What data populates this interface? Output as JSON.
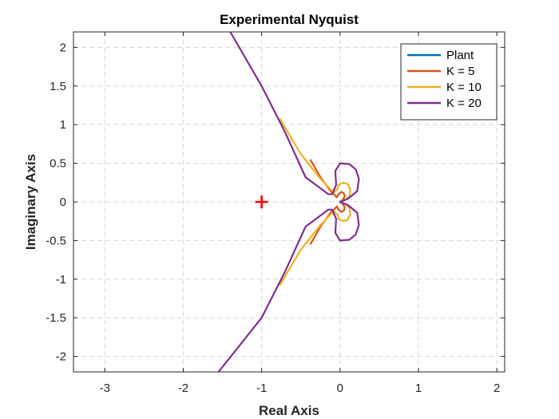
{
  "chart_data": {
    "type": "line",
    "title": "Experimental Nyquist",
    "xlabel": "Real Axis",
    "ylabel": "Imaginary Axis",
    "xlim": [
      -3.4,
      2.1
    ],
    "ylim": [
      -2.2,
      2.2
    ],
    "grid": true,
    "legend_position": "top-right",
    "x_ticks": [
      -3,
      -2,
      -1,
      0,
      1,
      2
    ],
    "y_ticks": [
      -2,
      -1.5,
      -1,
      -0.5,
      0,
      0.5,
      1,
      1.5,
      2
    ],
    "x_tick_labels": [
      "-3",
      "-2",
      "-1",
      "0",
      "1",
      "2"
    ],
    "y_tick_labels": [
      "-2",
      "-1.5",
      "-1",
      "-0.5",
      "0",
      "0.5",
      "1",
      "1.5",
      "2"
    ],
    "critical_point": {
      "x": -1,
      "y": 0,
      "marker": "+",
      "color": "#ff0000"
    },
    "series": [
      {
        "name": "Plant",
        "color": "#0072bd",
        "points": [
          [
            0.0,
            0.0
          ],
          [
            0.005,
            0.004
          ],
          [
            0.008,
            0.0
          ],
          [
            0.005,
            -0.004
          ],
          [
            0.0,
            0.0
          ]
        ]
      },
      {
        "name": "K = 5",
        "color": "#d95319",
        "points": [
          [
            -0.38,
            0.55
          ],
          [
            -0.25,
            0.32
          ],
          [
            -0.12,
            0.14
          ],
          [
            -0.04,
            0.06
          ],
          [
            -0.02,
            0.1
          ],
          [
            0.02,
            0.13
          ],
          [
            0.05,
            0.11
          ],
          [
            0.06,
            0.07
          ],
          [
            0.03,
            0.02
          ],
          [
            0.0,
            0.0
          ],
          [
            0.03,
            -0.02
          ],
          [
            0.06,
            -0.07
          ],
          [
            0.05,
            -0.11
          ],
          [
            0.02,
            -0.13
          ],
          [
            -0.02,
            -0.1
          ],
          [
            -0.04,
            -0.06
          ],
          [
            -0.12,
            -0.14
          ],
          [
            -0.25,
            -0.32
          ],
          [
            -0.38,
            -0.55
          ]
        ]
      },
      {
        "name": "K = 10",
        "color": "#edb120",
        "points": [
          [
            -0.77,
            1.08
          ],
          [
            -0.5,
            0.62
          ],
          [
            -0.25,
            0.3
          ],
          [
            -0.08,
            0.12
          ],
          [
            -0.03,
            0.17
          ],
          [
            -0.02,
            0.22
          ],
          [
            0.04,
            0.25
          ],
          [
            0.1,
            0.23
          ],
          [
            0.13,
            0.16
          ],
          [
            0.12,
            0.07
          ],
          [
            0.05,
            0.02
          ],
          [
            0.0,
            0.0
          ],
          [
            0.05,
            -0.02
          ],
          [
            0.12,
            -0.07
          ],
          [
            0.13,
            -0.16
          ],
          [
            0.1,
            -0.23
          ],
          [
            0.04,
            -0.25
          ],
          [
            -0.02,
            -0.22
          ],
          [
            -0.03,
            -0.17
          ],
          [
            -0.08,
            -0.12
          ],
          [
            -0.25,
            -0.3
          ],
          [
            -0.5,
            -0.62
          ],
          [
            -0.77,
            -1.08
          ]
        ]
      },
      {
        "name": "K = 20",
        "color": "#7e2f8e",
        "points": [
          [
            -1.4,
            2.2
          ],
          [
            -1.0,
            1.5
          ],
          [
            -0.7,
            0.9
          ],
          [
            -0.44,
            0.32
          ],
          [
            -0.15,
            0.1
          ],
          [
            -0.1,
            0.1
          ],
          [
            -0.05,
            0.22
          ],
          [
            -0.06,
            0.4
          ],
          [
            0.0,
            0.5
          ],
          [
            0.12,
            0.49
          ],
          [
            0.2,
            0.42
          ],
          [
            0.24,
            0.3
          ],
          [
            0.22,
            0.14
          ],
          [
            0.1,
            0.04
          ],
          [
            0.0,
            0.0
          ],
          [
            0.1,
            -0.04
          ],
          [
            0.22,
            -0.14
          ],
          [
            0.24,
            -0.3
          ],
          [
            0.2,
            -0.42
          ],
          [
            0.12,
            -0.49
          ],
          [
            0.0,
            -0.5
          ],
          [
            -0.06,
            -0.4
          ],
          [
            -0.05,
            -0.22
          ],
          [
            -0.1,
            -0.1
          ],
          [
            -0.15,
            -0.1
          ],
          [
            -0.44,
            -0.32
          ],
          [
            -0.7,
            -0.9
          ],
          [
            -1.0,
            -1.5
          ],
          [
            -1.55,
            -2.2
          ]
        ]
      }
    ]
  }
}
